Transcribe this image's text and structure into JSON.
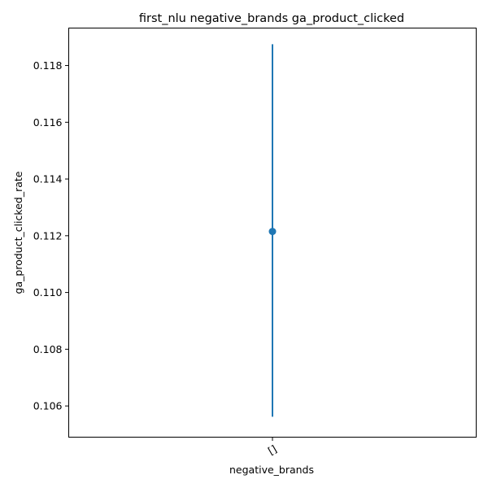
{
  "chart_data": {
    "type": "scatter",
    "title": "first_nlu negative_brands ga_product_clicked",
    "xlabel": "negative_brands",
    "ylabel": "ga_product_clicked_rate",
    "categories": [
      "[]"
    ],
    "points": [
      {
        "category": "[]",
        "y": 0.11215,
        "err_low": 0.10562,
        "err_high": 0.11875
      }
    ],
    "ylim": [
      0.1049,
      0.11932
    ],
    "yticks": [
      0.106,
      0.108,
      0.11,
      0.112,
      0.114,
      0.116,
      0.118
    ],
    "ytick_labels": [
      "0.106",
      "0.108",
      "0.110",
      "0.112",
      "0.114",
      "0.116",
      "0.118"
    ],
    "grid": false,
    "legend": "none",
    "color": "#1f77b4"
  }
}
